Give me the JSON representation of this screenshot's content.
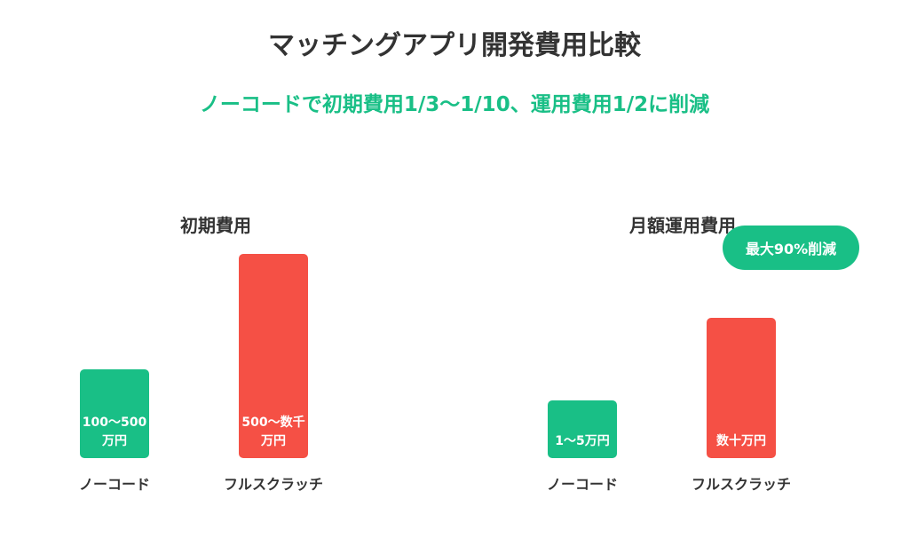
{
  "title": "マッチングアプリ開発費用比較",
  "subtitle": "ノーコードで初期費用1/3〜1/10、運用費用1/2に削減",
  "colors": {
    "accent": "#19BF86",
    "nocode": "#19BF86",
    "scratch": "#F55045",
    "text": "#333333"
  },
  "badge": "最大90%削減",
  "chart_data": [
    {
      "type": "bar",
      "title": "初期費用",
      "categories": [
        "ノーコード",
        "フルスクラッチ"
      ],
      "values": [
        100,
        230
      ],
      "value_labels": [
        "100〜500\n万円",
        "500〜数千\n万円"
      ]
    },
    {
      "type": "bar",
      "title": "月額運用費用",
      "categories": [
        "ノーコード",
        "フルスクラッチ"
      ],
      "values": [
        65,
        158
      ],
      "value_labels": [
        "1〜5万円",
        "数十万円"
      ]
    }
  ]
}
